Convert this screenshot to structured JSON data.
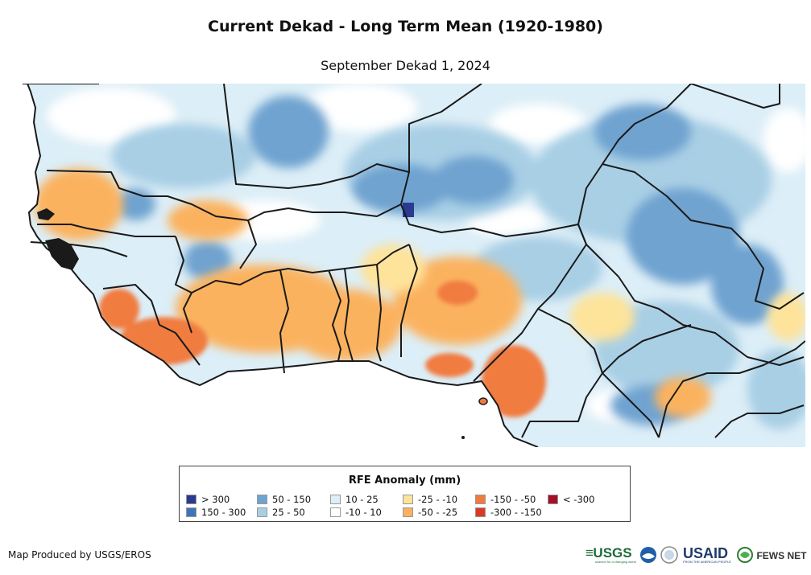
{
  "header": {
    "title": "Current Dekad - Long Term Mean (1920-1980)",
    "subtitle": "September Dekad 1, 2024"
  },
  "map": {
    "colors": {
      "c300p": "#2b3990",
      "c150": "#3e73b8",
      "c50": "#6fa3d0",
      "c25": "#a9cfe5",
      "c10": "#dceef7",
      "cNeutral": "#ffffff",
      "cm10": "#fee39a",
      "cm25": "#fbb25e",
      "cm50": "#f07b3f",
      "cm150": "#d83a25",
      "cm300": "#a50f27",
      "ocean": "#ffffff",
      "border": "#1a1a1a"
    }
  },
  "legend": {
    "title": "RFE Anomaly (mm)",
    "items": [
      {
        "label": "> 300",
        "color": "#2b3990"
      },
      {
        "label": "150 - 300",
        "color": "#3e73b8"
      },
      {
        "label": "50 - 150",
        "color": "#6fa3d0"
      },
      {
        "label": "25 - 50",
        "color": "#a9cfe5"
      },
      {
        "label": "10 - 25",
        "color": "#dceef7"
      },
      {
        "label": "-10 - 10",
        "color": "#ffffff"
      },
      {
        "label": "-25 - -10",
        "color": "#fee39a"
      },
      {
        "label": "-50 - -25",
        "color": "#fbb25e"
      },
      {
        "label": "-150 - -50",
        "color": "#f07b3f"
      },
      {
        "label": "-300 - -150",
        "color": "#d83a25"
      },
      {
        "label": "< -300",
        "color": "#a50f27"
      }
    ]
  },
  "footer": {
    "credit": "Map Produced by USGS/EROS",
    "logos": {
      "usgs": "USGS",
      "usgs_tagline": "science for a changing world",
      "usaid": "USAID",
      "usaid_tagline": "FROM THE AMERICAN PEOPLE",
      "fews": "FEWS NET"
    }
  }
}
